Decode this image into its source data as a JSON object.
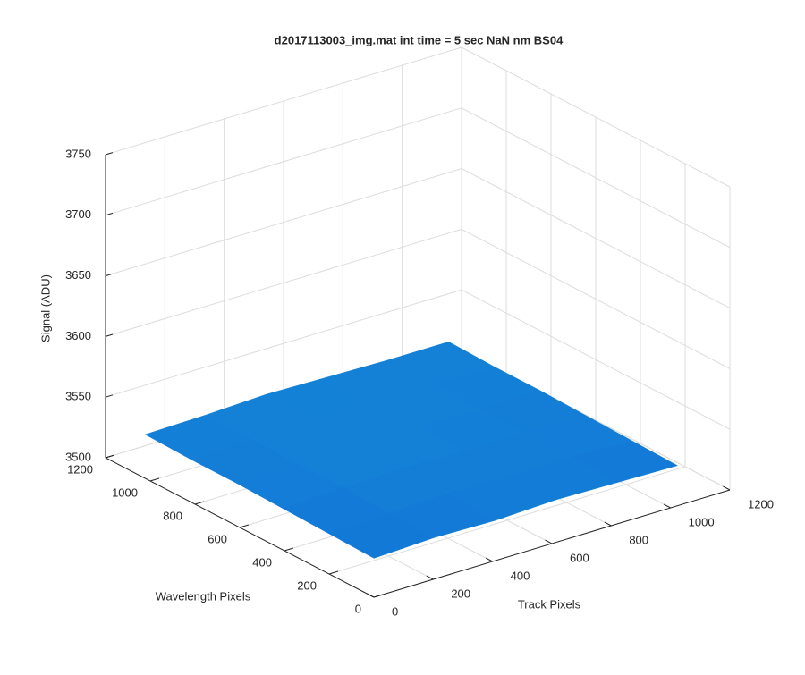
{
  "chart_data": {
    "type": "surface",
    "title": "d2017113003_img.mat int time = 5 sec  NaN nm BS04",
    "xlabel": "Track Pixels",
    "ylabel": "Wavelength Pixels",
    "zlabel": "Signal (ADU)",
    "x": [
      1,
      205,
      410,
      614,
      819,
      1024
    ],
    "y": [
      1,
      205,
      410,
      614,
      819,
      1024
    ],
    "z": [
      [
        3532,
        3534,
        3533,
        3535,
        3534,
        3533
      ],
      [
        3533,
        3535,
        3536,
        3535,
        3536,
        3534
      ],
      [
        3534,
        3536,
        3537,
        3536,
        3537,
        3535
      ],
      [
        3535,
        3536,
        3538,
        3537,
        3536,
        3536
      ],
      [
        3535,
        3537,
        3538,
        3538,
        3537,
        3536
      ],
      [
        3536,
        3537,
        3539,
        3538,
        3537,
        3537
      ]
    ],
    "xlim": [
      0,
      1200
    ],
    "ylim": [
      0,
      1200
    ],
    "zlim": [
      3500,
      3750
    ],
    "xticks": [
      0,
      200,
      400,
      600,
      800,
      1000,
      1200
    ],
    "yticks": [
      0,
      200,
      400,
      600,
      800,
      1000,
      1200
    ],
    "zticks": [
      3500,
      3550,
      3600,
      3650,
      3700,
      3750
    ],
    "grid": true,
    "clim": [
      3500,
      3650
    ],
    "colormap": [
      "#352a87",
      "#0f5cdd",
      "#1481d6",
      "#06a4ca",
      "#2eb7a4",
      "#87bf77",
      "#d1bb59",
      "#fec832",
      "#f9fb0e"
    ]
  }
}
